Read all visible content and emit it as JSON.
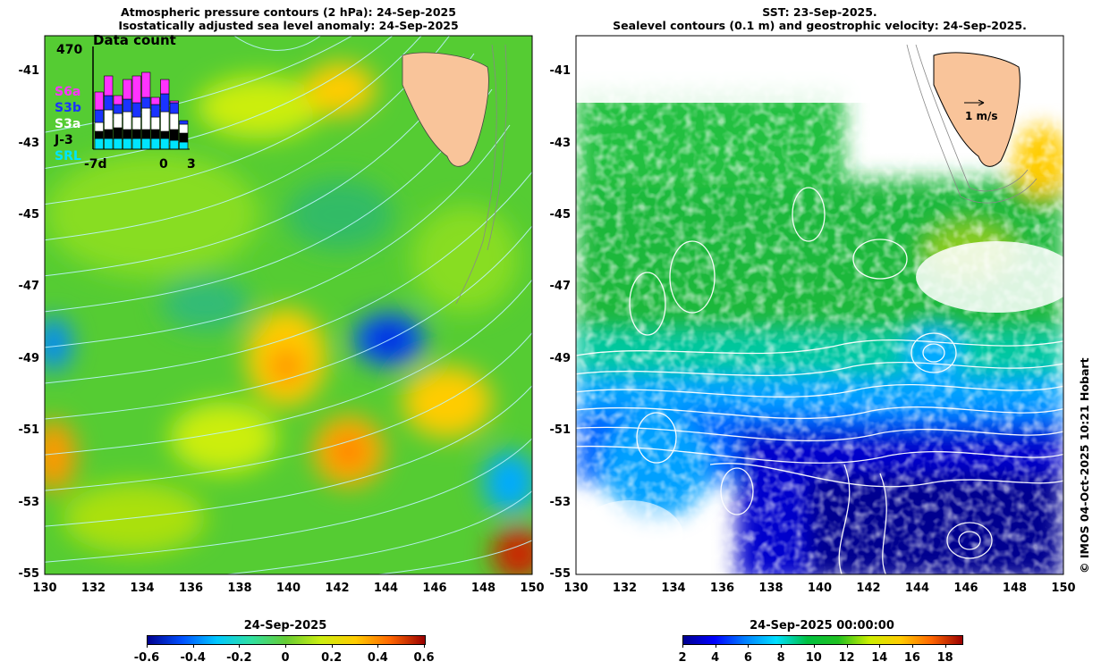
{
  "left_panel": {
    "title_line1": "Atmospheric pressure contours (2 hPa): 24-Sep-2025",
    "title_line2": "Isostatically adjusted sea level anomaly: 24-Sep-2025",
    "colorbar_title": "24-Sep-2025",
    "colorbar_ticks": [
      "-0.6",
      "-0.4",
      "-0.2",
      "0",
      "0.2",
      "0.4",
      "0.6"
    ],
    "colorbar_range": [
      -0.6,
      0.6
    ],
    "inset": {
      "title": "Data count",
      "max_label": "470",
      "x_labels": [
        "-7d",
        "0",
        "3"
      ],
      "missions": [
        {
          "name": "S6a",
          "color": "#ff33ff"
        },
        {
          "name": "S3b",
          "color": "#1a33ff"
        },
        {
          "name": "S3a",
          "color": "#ffffff"
        },
        {
          "name": "J-3",
          "color": "#000000"
        },
        {
          "name": "SRL",
          "color": "#00e5ff"
        }
      ]
    }
  },
  "right_panel": {
    "title_line1": "SST: 23-Sep-2025.",
    "title_line2": "Sealevel contours (0.1 m) and geostrophic velocity: 24-Sep-2025.",
    "colorbar_title": "24-Sep-2025 00:00:00",
    "colorbar_ticks": [
      "2",
      "4",
      "6",
      "8",
      "10",
      "12",
      "14",
      "16",
      "18"
    ],
    "colorbar_range": [
      2,
      19
    ],
    "velocity_label": "1 m/s"
  },
  "axes": {
    "y_ticks": [
      "-41",
      "-43",
      "-45",
      "-47",
      "-49",
      "-51",
      "-53",
      "-55"
    ],
    "x_ticks": [
      "130",
      "132",
      "134",
      "136",
      "138",
      "140",
      "142",
      "144",
      "146",
      "148",
      "150"
    ],
    "lon_range": [
      130,
      150
    ],
    "lat_range": [
      -55,
      -40
    ]
  },
  "stamp": "© IMOS 04-Oct-2025 10:21 Hobart",
  "colors": {
    "land": "#f9c49a",
    "sla_cmap": [
      "#00008f",
      "#0050ff",
      "#00c8ff",
      "#30e0a0",
      "#66cc33",
      "#ccee11",
      "#ffcc00",
      "#ff6600",
      "#9a0000"
    ],
    "sst_cmap": [
      "#00008f",
      "#0000ff",
      "#0080ff",
      "#00e0ff",
      "#00c040",
      "#20c020",
      "#ccee00",
      "#ffcc00",
      "#ff6600",
      "#9a0000"
    ]
  }
}
